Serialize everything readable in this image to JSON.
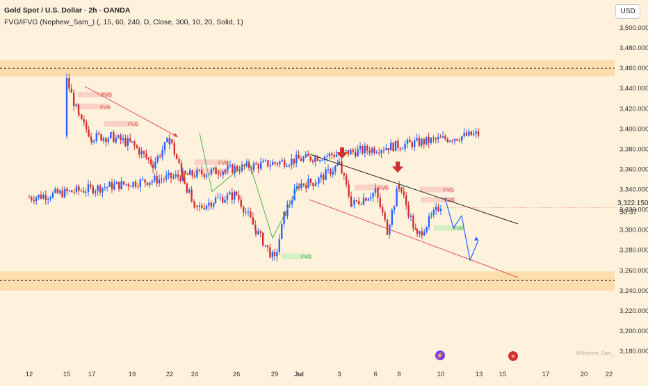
{
  "header": {
    "title": "Gold Spot / U.S. Dollar · 2h · OANDA",
    "indicator": "FVG/iFVG (Nephew_Sam_) (, 15, 60, 240, D, Close, 300, 10, 20, Solid, 1)"
  },
  "currency_button": "USD",
  "price": {
    "last": "3,322.150",
    "countdown": "50:37"
  },
  "watermark": "@Nephew_Sam_",
  "colors": {
    "background": "#fef2dd",
    "up_candle": "#2962ff",
    "down_candle": "#d32f2f",
    "zone": "#fbd9a4",
    "bear_fvg": "#f8c8c0",
    "bull_fvg": "#c9ecc2",
    "projection": "#2962ff",
    "last_price_tag": "#f23645"
  },
  "icons": {
    "lightning": "lightning-icon",
    "flag": "us-flag-icon"
  },
  "chart_data": {
    "type": "candlestick",
    "title": "Gold Spot / U.S. Dollar · 2h · OANDA",
    "ylabel": "USD",
    "ylim": [
      3170,
      3515
    ],
    "y_ticks": [
      "3,500.000",
      "3,480.000",
      "3,460.000",
      "3,440.000",
      "3,420.000",
      "3,400.000",
      "3,380.000",
      "3,360.000",
      "3,340.000",
      "3,320.000",
      "3,300.000",
      "3,280.000",
      "3,260.000",
      "3,240.000",
      "3,220.000",
      "3,200.000",
      "3,180.000"
    ],
    "x_ticks": [
      "12",
      "15",
      "17",
      "19",
      "22",
      "24",
      "26",
      "29",
      "Jul",
      "3",
      "6",
      "8",
      "10",
      "13",
      "15",
      "17",
      "20",
      "22"
    ],
    "series": [
      {
        "role": "price_path",
        "points": [
          {
            "d": "12",
            "v": 3332
          },
          {
            "d": "13",
            "v": 3395
          },
          {
            "d": "15",
            "v": 3448
          },
          {
            "d": "16",
            "v": 3410
          },
          {
            "d": "17",
            "v": 3392
          },
          {
            "d": "18",
            "v": 3392
          },
          {
            "d": "19",
            "v": 3385
          },
          {
            "d": "20",
            "v": 3365
          },
          {
            "d": "22",
            "v": 3390
          },
          {
            "d": "23",
            "v": 3355
          },
          {
            "d": "24",
            "v": 3320
          },
          {
            "d": "25",
            "v": 3330
          },
          {
            "d": "26",
            "v": 3335
          },
          {
            "d": "27",
            "v": 3300
          },
          {
            "d": "29",
            "v": 3270
          },
          {
            "d": "30",
            "v": 3318
          },
          {
            "d": "Jul",
            "v": 3345
          },
          {
            "d": "2",
            "v": 3348
          },
          {
            "d": "3",
            "v": 3365
          },
          {
            "d": "4",
            "v": 3325
          },
          {
            "d": "6",
            "v": 3338
          },
          {
            "d": "7",
            "v": 3300
          },
          {
            "d": "8",
            "v": 3345
          },
          {
            "d": "9",
            "v": 3293
          },
          {
            "d": "10",
            "v": 3325
          }
        ]
      }
    ],
    "levels": [
      {
        "kind": "resistance_zone",
        "from": 3452,
        "to": 3468,
        "line": 3460
      },
      {
        "kind": "support_zone",
        "from": 3240,
        "to": 3259,
        "line": 3250
      }
    ],
    "trendlines": [
      {
        "kind": "descending_resistance",
        "from": {
          "d": "Jul",
          "v": 3375
        },
        "to": {
          "d": "12",
          "v": 3306
        }
      },
      {
        "kind": "descending_support",
        "from": {
          "d": "Jul",
          "v": 3330
        },
        "to": {
          "d": "15",
          "v": 3253
        }
      },
      {
        "kind": "decline_arrow",
        "from": {
          "d": "16",
          "v": 3442
        },
        "to": {
          "d": "22",
          "v": 3392
        }
      }
    ],
    "fvg_zones": [
      {
        "label": "FVG",
        "type": "bearish",
        "v": 3434
      },
      {
        "label": "FVG",
        "type": "bearish",
        "v": 3422
      },
      {
        "label": "FVG",
        "type": "bearish",
        "v": 3405
      },
      {
        "label": "FVG",
        "type": "bearish",
        "v": 3367
      },
      {
        "label": "FVG",
        "type": "bearish",
        "v": 3358
      },
      {
        "label": "FVG",
        "type": "bearish",
        "v": 3342
      },
      {
        "label": "FVG",
        "type": "bearish",
        "v": 3340
      },
      {
        "label": "FVG",
        "type": "bearish",
        "v": 3330
      },
      {
        "label": "FVG",
        "type": "bullish",
        "v": 3302
      },
      {
        "label": "FVG",
        "type": "bullish",
        "v": 3274
      }
    ],
    "signals": [
      {
        "kind": "down_arrow",
        "d": "3",
        "v": 3372
      },
      {
        "kind": "down_arrow",
        "d": "8",
        "v": 3358
      }
    ],
    "projection": [
      {
        "d": "10",
        "v": 3332
      },
      {
        "d": "11",
        "v": 3302
      },
      {
        "d": "12",
        "v": 3314
      },
      {
        "d": "12",
        "v": 3270
      },
      {
        "d": "13",
        "v": 3290
      }
    ],
    "last_price": 3322.15
  }
}
